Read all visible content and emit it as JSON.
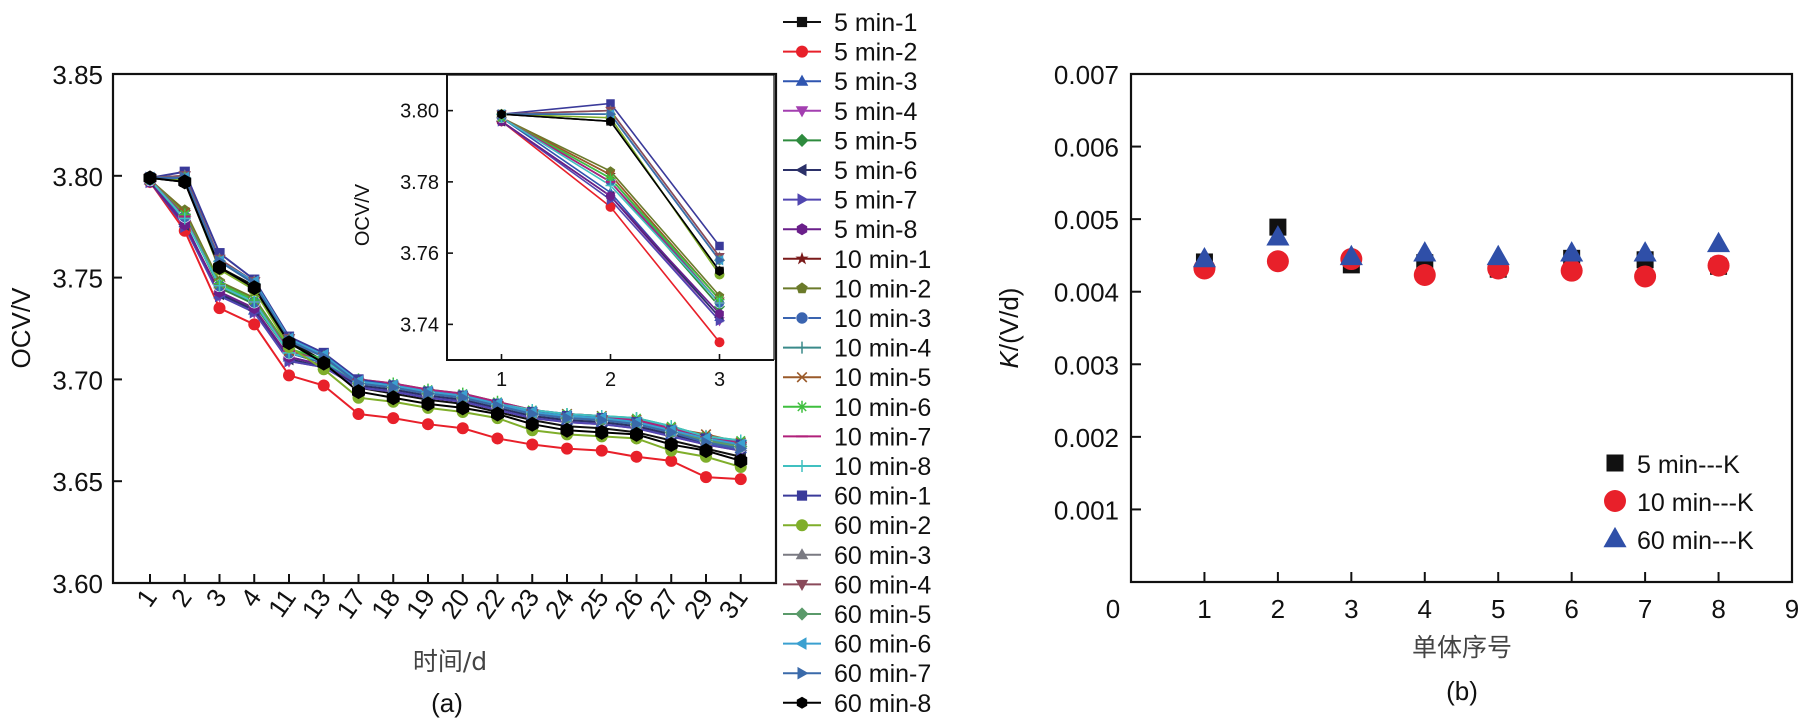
{
  "chart_data": [
    {
      "id": "a",
      "type": "line",
      "panel_label": "(a)",
      "title": "",
      "xlabel": "时间/d",
      "ylabel": "OCV/V",
      "ylim": [
        3.6,
        3.85
      ],
      "yticks": [
        "3.60",
        "3.65",
        "3.70",
        "3.75",
        "3.80",
        "3.85"
      ],
      "categories": [
        "1",
        "2",
        "3",
        "4",
        "11",
        "13",
        "17",
        "18",
        "19",
        "20",
        "22",
        "23",
        "24",
        "25",
        "26",
        "27",
        "29",
        "31"
      ],
      "legend_position": "outside-right",
      "series": [
        {
          "name": "5 min-1",
          "color": "#111111",
          "marker": "square",
          "values": [
            3.799,
            3.797,
            3.755,
            3.746,
            3.719,
            3.709,
            3.696,
            3.693,
            3.69,
            3.688,
            3.684,
            3.68,
            3.677,
            3.676,
            3.674,
            3.67,
            3.666,
            3.662
          ]
        },
        {
          "name": "5 min-2",
          "color": "#e8202a",
          "marker": "circle",
          "values": [
            3.797,
            3.773,
            3.735,
            3.727,
            3.702,
            3.697,
            3.683,
            3.681,
            3.678,
            3.676,
            3.671,
            3.668,
            3.666,
            3.665,
            3.662,
            3.66,
            3.652,
            3.651
          ]
        },
        {
          "name": "5 min-3",
          "color": "#2f55b0",
          "marker": "triangle-up",
          "values": [
            3.798,
            3.777,
            3.742,
            3.734,
            3.711,
            3.707,
            3.697,
            3.695,
            3.692,
            3.69,
            3.686,
            3.682,
            3.68,
            3.679,
            3.677,
            3.673,
            3.669,
            3.666
          ]
        },
        {
          "name": "5 min-4",
          "color": "#a33fb0",
          "marker": "triangle-down",
          "values": [
            3.797,
            3.776,
            3.741,
            3.733,
            3.709,
            3.706,
            3.696,
            3.694,
            3.691,
            3.689,
            3.685,
            3.681,
            3.679,
            3.678,
            3.676,
            3.672,
            3.668,
            3.665
          ]
        },
        {
          "name": "5 min-5",
          "color": "#2e8b3e",
          "marker": "diamond",
          "values": [
            3.798,
            3.78,
            3.745,
            3.737,
            3.713,
            3.708,
            3.698,
            3.696,
            3.693,
            3.691,
            3.687,
            3.683,
            3.681,
            3.68,
            3.678,
            3.674,
            3.67,
            3.667
          ]
        },
        {
          "name": "5 min-6",
          "color": "#2b3068",
          "marker": "triangle-left",
          "values": [
            3.797,
            3.776,
            3.742,
            3.734,
            3.71,
            3.706,
            3.697,
            3.695,
            3.692,
            3.69,
            3.686,
            3.682,
            3.68,
            3.679,
            3.677,
            3.673,
            3.669,
            3.666
          ]
        },
        {
          "name": "5 min-7",
          "color": "#5046b0",
          "marker": "triangle-right",
          "values": [
            3.797,
            3.775,
            3.741,
            3.733,
            3.709,
            3.706,
            3.696,
            3.694,
            3.691,
            3.689,
            3.685,
            3.681,
            3.679,
            3.678,
            3.676,
            3.672,
            3.668,
            3.665
          ]
        },
        {
          "name": "5 min-8",
          "color": "#6a1f8a",
          "marker": "hexagon",
          "values": [
            3.797,
            3.776,
            3.743,
            3.735,
            3.711,
            3.707,
            3.698,
            3.696,
            3.693,
            3.691,
            3.687,
            3.683,
            3.681,
            3.68,
            3.678,
            3.674,
            3.67,
            3.667
          ]
        },
        {
          "name": "10 min-1",
          "color": "#7a1a1a",
          "marker": "star",
          "values": [
            3.798,
            3.782,
            3.747,
            3.739,
            3.714,
            3.709,
            3.699,
            3.697,
            3.694,
            3.692,
            3.688,
            3.684,
            3.682,
            3.681,
            3.679,
            3.675,
            3.672,
            3.669
          ]
        },
        {
          "name": "10 min-2",
          "color": "#6b7a2a",
          "marker": "pentagon",
          "values": [
            3.798,
            3.783,
            3.748,
            3.74,
            3.715,
            3.709,
            3.699,
            3.697,
            3.694,
            3.692,
            3.688,
            3.684,
            3.682,
            3.681,
            3.679,
            3.675,
            3.671,
            3.668
          ]
        },
        {
          "name": "10 min-3",
          "color": "#3a64b0",
          "marker": "sphere",
          "values": [
            3.798,
            3.78,
            3.746,
            3.738,
            3.713,
            3.708,
            3.698,
            3.696,
            3.693,
            3.691,
            3.687,
            3.683,
            3.681,
            3.68,
            3.678,
            3.674,
            3.67,
            3.667
          ]
        },
        {
          "name": "10 min-4",
          "color": "#3a8a8a",
          "marker": "plus",
          "values": [
            3.798,
            3.781,
            3.746,
            3.738,
            3.714,
            3.709,
            3.699,
            3.697,
            3.694,
            3.692,
            3.688,
            3.684,
            3.682,
            3.681,
            3.679,
            3.675,
            3.671,
            3.668
          ]
        },
        {
          "name": "10 min-5",
          "color": "#9a5a2a",
          "marker": "x",
          "values": [
            3.798,
            3.782,
            3.747,
            3.739,
            3.714,
            3.709,
            3.699,
            3.697,
            3.694,
            3.692,
            3.688,
            3.684,
            3.683,
            3.682,
            3.68,
            3.676,
            3.673,
            3.669
          ]
        },
        {
          "name": "10 min-6",
          "color": "#3fbf3f",
          "marker": "asterisk",
          "values": [
            3.798,
            3.781,
            3.747,
            3.739,
            3.715,
            3.71,
            3.7,
            3.698,
            3.695,
            3.693,
            3.689,
            3.685,
            3.683,
            3.682,
            3.681,
            3.677,
            3.672,
            3.67
          ]
        },
        {
          "name": "10 min-7",
          "color": "#b0207a",
          "marker": "dash",
          "values": [
            3.798,
            3.78,
            3.746,
            3.738,
            3.714,
            3.709,
            3.7,
            3.698,
            3.695,
            3.693,
            3.689,
            3.685,
            3.683,
            3.682,
            3.68,
            3.676,
            3.672,
            3.669
          ]
        },
        {
          "name": "10 min-8",
          "color": "#40c0c0",
          "marker": "plus",
          "values": [
            3.798,
            3.779,
            3.746,
            3.738,
            3.713,
            3.709,
            3.699,
            3.697,
            3.694,
            3.692,
            3.688,
            3.685,
            3.683,
            3.682,
            3.681,
            3.677,
            3.672,
            3.67
          ]
        },
        {
          "name": "60 min-1",
          "color": "#3a3a9a",
          "marker": "square",
          "values": [
            3.799,
            3.802,
            3.762,
            3.749,
            3.721,
            3.713,
            3.7,
            3.697,
            3.694,
            3.692,
            3.688,
            3.684,
            3.682,
            3.681,
            3.679,
            3.675,
            3.671,
            3.668
          ]
        },
        {
          "name": "60 min-2",
          "color": "#7fae2a",
          "marker": "circle",
          "values": [
            3.799,
            3.798,
            3.754,
            3.744,
            3.716,
            3.705,
            3.691,
            3.689,
            3.686,
            3.684,
            3.681,
            3.675,
            3.673,
            3.672,
            3.671,
            3.665,
            3.662,
            3.657
          ]
        },
        {
          "name": "60 min-3",
          "color": "#7a7a82",
          "marker": "triangle-up",
          "values": [
            3.799,
            3.8,
            3.759,
            3.748,
            3.72,
            3.711,
            3.698,
            3.696,
            3.693,
            3.691,
            3.687,
            3.683,
            3.681,
            3.68,
            3.678,
            3.674,
            3.67,
            3.667
          ]
        },
        {
          "name": "60 min-4",
          "color": "#8a4a5a",
          "marker": "triangle-down",
          "values": [
            3.799,
            3.8,
            3.759,
            3.748,
            3.72,
            3.711,
            3.698,
            3.696,
            3.693,
            3.691,
            3.687,
            3.683,
            3.681,
            3.68,
            3.678,
            3.674,
            3.67,
            3.667
          ]
        },
        {
          "name": "60 min-5",
          "color": "#5a9a6a",
          "marker": "diamond",
          "values": [
            3.799,
            3.799,
            3.758,
            3.747,
            3.719,
            3.711,
            3.698,
            3.696,
            3.693,
            3.691,
            3.687,
            3.683,
            3.681,
            3.68,
            3.678,
            3.674,
            3.67,
            3.667
          ]
        },
        {
          "name": "60 min-6",
          "color": "#3aa0d0",
          "marker": "triangle-left",
          "values": [
            3.799,
            3.799,
            3.758,
            3.748,
            3.72,
            3.712,
            3.699,
            3.697,
            3.694,
            3.692,
            3.688,
            3.684,
            3.682,
            3.681,
            3.679,
            3.675,
            3.671,
            3.668
          ]
        },
        {
          "name": "60 min-7",
          "color": "#3a6aaa",
          "marker": "triangle-right",
          "values": [
            3.799,
            3.799,
            3.758,
            3.747,
            3.719,
            3.711,
            3.698,
            3.696,
            3.693,
            3.691,
            3.687,
            3.683,
            3.681,
            3.68,
            3.678,
            3.674,
            3.669,
            3.666
          ]
        },
        {
          "name": "60 min-8",
          "color": "#000000",
          "marker": "hexagon",
          "values": [
            3.799,
            3.797,
            3.755,
            3.745,
            3.718,
            3.708,
            3.694,
            3.691,
            3.688,
            3.686,
            3.683,
            3.678,
            3.675,
            3.674,
            3.673,
            3.668,
            3.665,
            3.66
          ]
        }
      ],
      "inset": {
        "ylabel": "OCV/V",
        "ylim": [
          3.73,
          3.81
        ],
        "yticks": [
          "3.74",
          "3.76",
          "3.78",
          "3.80"
        ],
        "xlim": [
          0.5,
          3.5
        ],
        "xticks": [
          "1",
          "2",
          "3"
        ],
        "note": "zoom of the first three time points"
      }
    },
    {
      "id": "b",
      "type": "scatter",
      "panel_label": "(b)",
      "title": "",
      "xlabel": "单体序号",
      "ylabel": "K/(V/d)",
      "xlim": [
        0,
        9
      ],
      "ylim": [
        0,
        0.007
      ],
      "xticks": [
        "0",
        "1",
        "2",
        "3",
        "4",
        "5",
        "6",
        "7",
        "8",
        "9"
      ],
      "yticks": [
        "0.001",
        "0.002",
        "0.003",
        "0.004",
        "0.005",
        "0.006",
        "0.007"
      ],
      "legend_position": "bottom-right",
      "x": [
        1,
        2,
        3,
        4,
        5,
        6,
        7,
        8
      ],
      "series": [
        {
          "name": "5 min---K",
          "color": "#111111",
          "marker": "square",
          "values": [
            0.00441,
            0.00489,
            0.00437,
            0.0044,
            0.00431,
            0.00446,
            0.00444,
            0.00435
          ]
        },
        {
          "name": "10 min---K",
          "color": "#e8202a",
          "marker": "circle",
          "values": [
            0.00432,
            0.00442,
            0.00445,
            0.00423,
            0.00432,
            0.00429,
            0.00421,
            0.00436
          ]
        },
        {
          "name": "60 min---K",
          "color": "#2f4fa8",
          "marker": "triangle-up",
          "values": [
            0.00445,
            0.00475,
            0.00448,
            0.00453,
            0.00448,
            0.00453,
            0.00453,
            0.00466
          ]
        }
      ]
    }
  ]
}
